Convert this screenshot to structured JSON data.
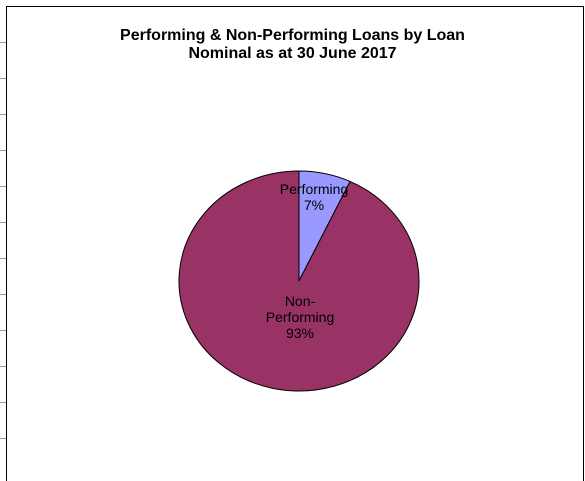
{
  "chart_data": {
    "type": "pie",
    "title": "Performing & Non-Performing Loans by Loan Nominal as at 30 June 2017",
    "title_lines": [
      "Performing & Non-Performing Loans by Loan",
      "Nominal as at 30 June 2017"
    ],
    "slices": [
      {
        "label": "Performing",
        "label_lines": [
          "Performing"
        ],
        "value": 7,
        "value_label": "7%",
        "color": "#9999ff"
      },
      {
        "label": "Non-Performing",
        "label_lines": [
          "Non-",
          "Performing"
        ],
        "value": 93,
        "value_label": "93%",
        "color": "#993366"
      }
    ],
    "legend": "none"
  }
}
